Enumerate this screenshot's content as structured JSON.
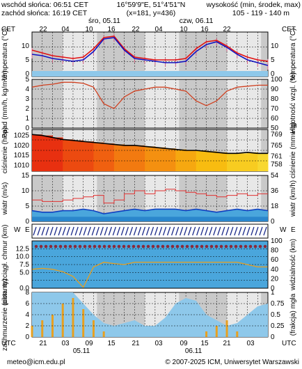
{
  "header": {
    "sunrise": "wschód słońca: 06:51 CET",
    "sunset": "zachód słońca: 16:19 CET",
    "coords": "16°59'9\"E, 51°4'51\"N",
    "grid": "(x=181, y=436)",
    "height_title": "wysokość (min, środek, max)",
    "heights": "105 - 119 - 140 m"
  },
  "top_axis": {
    "tz_left": "CET",
    "tz_right": "CET",
    "hours": [
      "22",
      "04",
      "10",
      "16",
      "22",
      "04",
      "10",
      "16",
      "22"
    ],
    "days": [
      "śro, 05.11",
      "czw, 06.11"
    ]
  },
  "bottom_axis": {
    "tz_left": "UTC",
    "tz_right": "UTC",
    "hours": [
      "21",
      "03",
      "09",
      "15",
      "21",
      "03",
      "09",
      "15",
      "21",
      "03"
    ],
    "days": [
      "05.11",
      "06.11"
    ]
  },
  "footer": {
    "email": "meteo@icm.edu.pl",
    "copyright": "© 2007-2025 ICM, Uniwersytet Warszawski"
  },
  "colors": {
    "plot_bg": "#c9c9c9",
    "day_bg": "#e8e8e8",
    "temp_line": "#e01010",
    "dew_line": "#1010c0",
    "precip_line": "#d04020",
    "pressure_line": "#000000",
    "wind_line": "#1040c0",
    "gust_line": "#e03030",
    "cloud_fill": "#4aa6dc",
    "lowcloud_fill": "#e8a020"
  },
  "chart_data": [
    {
      "type": "line",
      "name": "temperature",
      "ylabel": "temperatura (°C)",
      "yticks": [
        0,
        5,
        10
      ],
      "ylim": [
        -1,
        15
      ],
      "x_hours": [
        0,
        3,
        6,
        9,
        12,
        15,
        18,
        21,
        24,
        27,
        30,
        33,
        36,
        39,
        42,
        45,
        48,
        51,
        54,
        57,
        60,
        63,
        66,
        69
      ],
      "series": [
        {
          "values": [
            8.5,
            7.5,
            6.5,
            6,
            5.5,
            6,
            9,
            13,
            13.5,
            9,
            6,
            5.5,
            5,
            5,
            5,
            5.5,
            9,
            11.5,
            12,
            10,
            7.5,
            6,
            5,
            4.5
          ]
        },
        {
          "values": [
            7,
            6.5,
            5.5,
            5,
            4.5,
            5,
            8,
            12.5,
            13,
            8.5,
            5.5,
            5,
            4.5,
            4,
            4,
            4.5,
            8,
            10.5,
            11.5,
            9.5,
            7,
            5,
            4,
            3
          ]
        }
      ]
    },
    {
      "type": "line",
      "name": "precipitation-humidity",
      "ylabel_left": "opad (mm/h, kg/m²/h)",
      "ylabel_right": "wilgotność wzgl. (%)",
      "yticks_left": [
        0,
        1,
        2,
        3,
        4,
        5
      ],
      "yticks_right": [
        50,
        60,
        70,
        80,
        90,
        100
      ],
      "ylim_right": [
        50,
        100
      ],
      "x_hours": [
        0,
        3,
        6,
        9,
        12,
        15,
        18,
        21,
        24,
        27,
        30,
        33,
        36,
        39,
        42,
        45,
        48,
        51,
        54,
        57,
        60,
        63,
        66,
        69
      ],
      "series": [
        {
          "values": [
            92,
            94,
            95,
            97,
            97,
            96,
            92,
            75,
            70,
            82,
            88,
            90,
            92,
            92,
            90,
            88,
            78,
            73,
            78,
            88,
            92,
            93,
            94,
            94
          ]
        }
      ]
    },
    {
      "type": "area",
      "name": "pressure",
      "ylabel_left": "ciśnienie (hPa)",
      "ylabel_right": "ciśnienie (mm Hg)",
      "yticks_left": [
        1010,
        1015,
        1020,
        1025
      ],
      "yticks_right": [
        758,
        761,
        765,
        769
      ],
      "ylim": [
        1007,
        1028
      ],
      "x_hours": [
        0,
        3,
        6,
        9,
        12,
        15,
        18,
        21,
        24,
        27,
        30,
        33,
        36,
        39,
        42,
        45,
        48,
        51,
        54,
        57,
        60,
        63,
        66,
        69
      ],
      "series": [
        {
          "values": [
            1025.5,
            1025,
            1024,
            1023,
            1022.5,
            1022,
            1021.5,
            1021,
            1020.5,
            1020,
            1020,
            1019.5,
            1019,
            1018.5,
            1018,
            1017.5,
            1017.5,
            1017,
            1016.5,
            1016,
            1016,
            1016.5,
            1016,
            1016
          ]
        }
      ]
    },
    {
      "type": "line",
      "name": "wind",
      "ylabel_left": "wiatr (m/s)",
      "ylabel_right": "wiatr (km/h)",
      "yticks_left": [
        0,
        5,
        10,
        15
      ],
      "yticks_right": [
        0,
        18,
        36,
        54
      ],
      "ylim": [
        0,
        15
      ],
      "x_hours": [
        0,
        3,
        6,
        9,
        12,
        15,
        18,
        21,
        24,
        27,
        30,
        33,
        36,
        39,
        42,
        45,
        48,
        51,
        54,
        57,
        60,
        63,
        66,
        69
      ],
      "series": [
        {
          "values": [
            3.5,
            3,
            3,
            3.5,
            3.5,
            4,
            3.5,
            2.5,
            3,
            3.5,
            4,
            3.5,
            4,
            4,
            4,
            3.5,
            4,
            3.5,
            3,
            3.5,
            4,
            3.5,
            4,
            3.5
          ]
        },
        {
          "values": [
            7,
            6.5,
            6.5,
            7,
            7.5,
            8,
            8.5,
            6,
            7,
            9,
            10,
            9,
            10,
            10.5,
            10,
            9.5,
            9,
            8.5,
            8,
            8.5,
            9,
            8.5,
            9,
            9
          ]
        }
      ]
    },
    {
      "type": "area",
      "name": "cloud-base-visibility",
      "ylabel_left": "pion. rozciągł. chmur (km)",
      "ylabel_right": "widzialność (km)",
      "yticks_left": [
        0,
        2.5,
        5,
        7.5,
        10,
        12.5,
        15
      ],
      "yticks_right": [
        0,
        20,
        40,
        60,
        80,
        100
      ],
      "ylim_right": [
        0,
        100
      ],
      "x_hours": [
        0,
        3,
        6,
        9,
        12,
        15,
        18,
        21,
        24,
        27,
        30,
        33,
        36,
        39,
        42,
        45,
        48,
        51,
        54,
        57,
        60,
        63,
        66,
        69
      ],
      "series": [
        {
          "values": [
            40,
            42,
            40,
            35,
            25,
            2,
            45,
            55,
            52,
            50,
            55,
            55,
            55,
            55,
            55,
            55,
            55,
            55,
            55,
            55,
            55,
            50,
            45,
            45
          ]
        }
      ]
    },
    {
      "type": "area",
      "name": "cloudiness-fog",
      "ylabel_left": "zachmurzenie (oktanty)",
      "ylabel_right": "(frakcja) mgła",
      "yticks_left": [
        0,
        2,
        4,
        6,
        8
      ],
      "yticks_right": [
        0,
        0.25,
        0.5,
        0.75,
        1
      ],
      "ylim": [
        0,
        8
      ],
      "x_hours": [
        0,
        3,
        6,
        9,
        12,
        15,
        18,
        21,
        24,
        27,
        30,
        33,
        36,
        39,
        42,
        45,
        48,
        51,
        54,
        57,
        60,
        63,
        66,
        69
      ],
      "series": [
        {
          "values": [
            8,
            8,
            8,
            8,
            8,
            6,
            4,
            2.5,
            2,
            2.5,
            3,
            2,
            2,
            3.5,
            6,
            7,
            6.5,
            4,
            3,
            2,
            2.5,
            4,
            5.5,
            6
          ]
        },
        {
          "values": [
            2,
            3,
            4,
            6,
            7,
            5,
            3,
            1,
            0,
            0,
            0,
            0,
            0,
            0,
            0,
            0,
            0,
            1,
            2,
            3,
            1,
            0,
            0,
            0
          ]
        }
      ]
    }
  ]
}
